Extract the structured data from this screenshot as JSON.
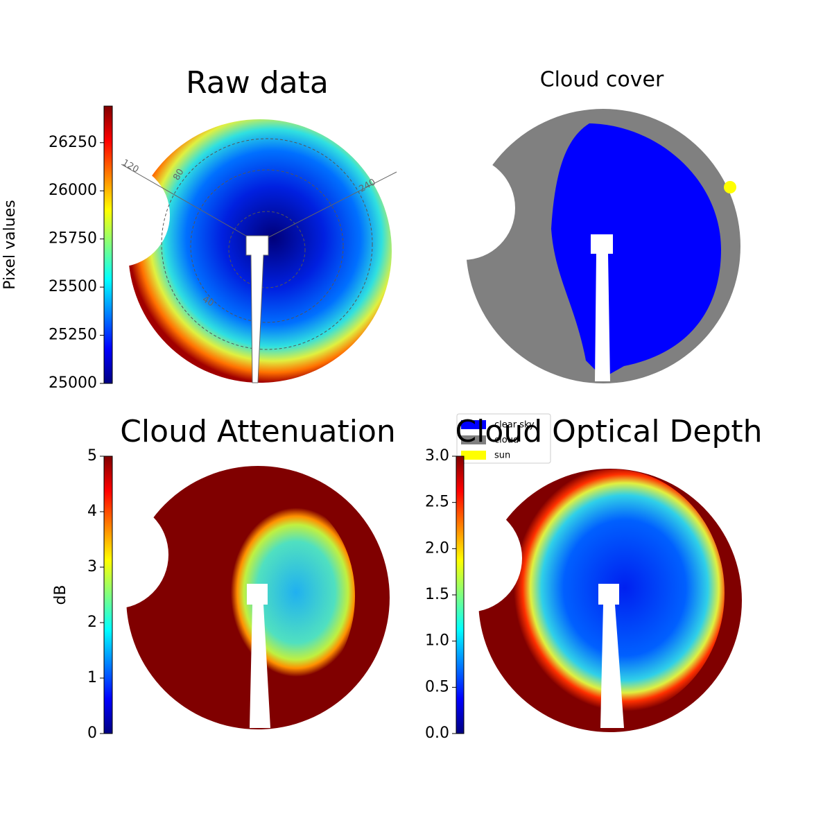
{
  "chart_data": [
    {
      "type": "image",
      "title": "Raw data",
      "colormap": "jet",
      "ylabel": "Pixel values",
      "ylim": [
        25000,
        26440
      ],
      "yticks": [
        25000,
        25250,
        25500,
        25750,
        26000,
        26250
      ],
      "annotations": [
        "120",
        "80",
        "240",
        "40"
      ]
    },
    {
      "type": "image",
      "title": "Cloud cover",
      "series": [
        {
          "name": "clear sky",
          "color": "#0000ff"
        },
        {
          "name": "cloud",
          "color": "#808080"
        },
        {
          "name": "sun",
          "color": "#ffff00"
        }
      ]
    },
    {
      "type": "image",
      "title": "Cloud Attenuation",
      "colormap": "jet",
      "ylabel": "dB",
      "ylim": [
        0,
        5
      ],
      "yticks": [
        0,
        1,
        2,
        3,
        4,
        5
      ]
    },
    {
      "type": "image",
      "title": "Cloud Optical Depth",
      "colormap": "jet",
      "ylim": [
        0,
        3
      ],
      "yticks": [
        {
          "value": 0,
          "label": "0.0"
        },
        {
          "value": 0.5,
          "label": "0.5"
        },
        {
          "value": 1,
          "label": "1.0"
        },
        {
          "value": 1.5,
          "label": "1.5"
        },
        {
          "value": 2,
          "label": "2.0"
        },
        {
          "value": 2.5,
          "label": "2.5"
        },
        {
          "value": 3,
          "label": "3.0"
        }
      ]
    }
  ]
}
